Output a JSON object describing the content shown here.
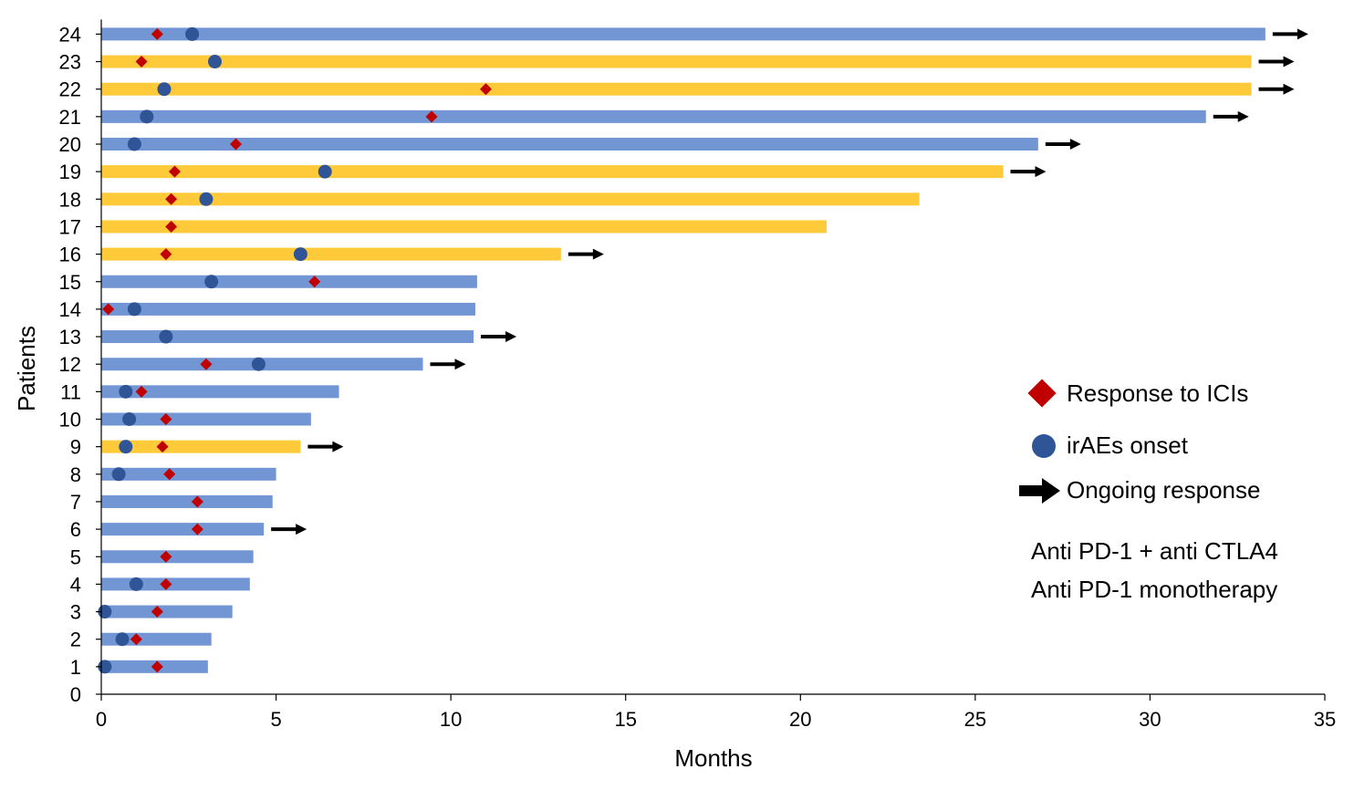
{
  "chart_data": {
    "type": "swimmer",
    "title": "",
    "xlabel": "Months",
    "ylabel": "Patients",
    "xlim": [
      0,
      35
    ],
    "ylim": [
      0,
      24
    ],
    "xticks": [
      0,
      5,
      10,
      15,
      20,
      25,
      30,
      35
    ],
    "yticks": [
      0,
      1,
      2,
      3,
      4,
      5,
      6,
      7,
      8,
      9,
      10,
      11,
      12,
      13,
      14,
      15,
      16,
      17,
      18,
      19,
      20,
      21,
      22,
      23,
      24
    ],
    "colors": {
      "combo": "#7296D4",
      "mono": "#FFCA3A",
      "response": "#C00000",
      "irae": "#2F5597",
      "arrow": "#000000",
      "axis": "#000000"
    },
    "patients": [
      {
        "id": 1,
        "therapy": "combo",
        "duration": 3.05,
        "response": 1.6,
        "irae": 0.1,
        "ongoing": false
      },
      {
        "id": 2,
        "therapy": "combo",
        "duration": 3.15,
        "response": 1.0,
        "irae": 0.6,
        "ongoing": false
      },
      {
        "id": 3,
        "therapy": "combo",
        "duration": 3.75,
        "response": 1.6,
        "irae": 0.1,
        "ongoing": false
      },
      {
        "id": 4,
        "therapy": "combo",
        "duration": 4.25,
        "response": 1.85,
        "irae": 1.0,
        "ongoing": false
      },
      {
        "id": 5,
        "therapy": "combo",
        "duration": 4.35,
        "response": 1.85,
        "irae": null,
        "ongoing": false
      },
      {
        "id": 6,
        "therapy": "combo",
        "duration": 4.65,
        "response": 2.75,
        "irae": null,
        "ongoing": true
      },
      {
        "id": 7,
        "therapy": "combo",
        "duration": 4.9,
        "response": 2.75,
        "irae": null,
        "ongoing": false
      },
      {
        "id": 8,
        "therapy": "combo",
        "duration": 5.0,
        "response": 1.95,
        "irae": 0.5,
        "ongoing": false
      },
      {
        "id": 9,
        "therapy": "mono",
        "duration": 5.7,
        "response": 1.75,
        "irae": 0.7,
        "ongoing": true
      },
      {
        "id": 10,
        "therapy": "combo",
        "duration": 6.0,
        "response": 1.85,
        "irae": 0.8,
        "ongoing": false
      },
      {
        "id": 11,
        "therapy": "combo",
        "duration": 6.8,
        "response": 1.15,
        "irae": 0.7,
        "ongoing": false
      },
      {
        "id": 12,
        "therapy": "combo",
        "duration": 9.2,
        "response": 3.0,
        "irae": 4.5,
        "ongoing": true
      },
      {
        "id": 13,
        "therapy": "combo",
        "duration": 10.65,
        "response": null,
        "irae": 1.85,
        "ongoing": true
      },
      {
        "id": 14,
        "therapy": "combo",
        "duration": 10.7,
        "response": 0.2,
        "irae": 0.95,
        "ongoing": false
      },
      {
        "id": 15,
        "therapy": "combo",
        "duration": 10.75,
        "response": 6.1,
        "irae": 3.15,
        "ongoing": false
      },
      {
        "id": 16,
        "therapy": "mono",
        "duration": 13.15,
        "response": 1.85,
        "irae": 5.7,
        "ongoing": true
      },
      {
        "id": 17,
        "therapy": "mono",
        "duration": 20.75,
        "response": 2.0,
        "irae": null,
        "ongoing": false
      },
      {
        "id": 18,
        "therapy": "mono",
        "duration": 23.4,
        "response": 2.0,
        "irae": 3.0,
        "ongoing": false
      },
      {
        "id": 19,
        "therapy": "mono",
        "duration": 25.8,
        "response": 2.1,
        "irae": 6.4,
        "ongoing": true
      },
      {
        "id": 20,
        "therapy": "combo",
        "duration": 26.8,
        "response": 3.85,
        "irae": 0.95,
        "ongoing": true
      },
      {
        "id": 21,
        "therapy": "combo",
        "duration": 31.6,
        "response": 9.45,
        "irae": 1.3,
        "ongoing": true
      },
      {
        "id": 22,
        "therapy": "mono",
        "duration": 32.9,
        "response": 11.0,
        "irae": 1.8,
        "ongoing": true
      },
      {
        "id": 23,
        "therapy": "mono",
        "duration": 32.9,
        "response": 1.15,
        "irae": 3.25,
        "ongoing": true
      },
      {
        "id": 24,
        "therapy": "combo",
        "duration": 33.3,
        "response": 1.6,
        "irae": 2.6,
        "ongoing": true
      }
    ],
    "legend": {
      "response_label": "Response to ICIs",
      "irae_label": "irAEs onset",
      "ongoing_label": "Ongoing response",
      "combo_label": "Anti PD-1 + anti CTLA4",
      "mono_label": "Anti PD-1 monotherapy",
      "placement": "right"
    }
  }
}
